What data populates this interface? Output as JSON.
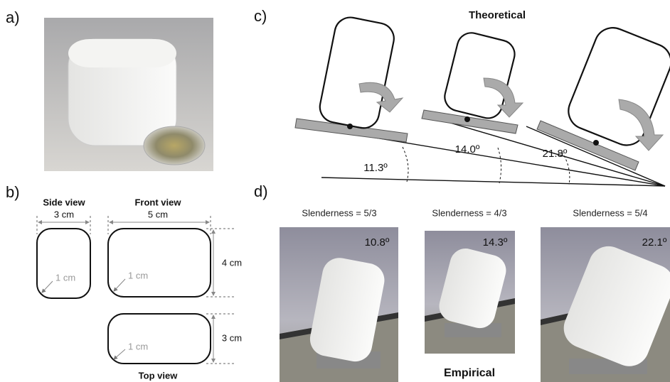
{
  "panels": {
    "a": {
      "label": "a)"
    },
    "b": {
      "label": "b)",
      "side_view": {
        "title": "Side view",
        "width": "3 cm",
        "radius": "1 cm"
      },
      "front_view": {
        "title": "Front view",
        "width": "5 cm",
        "height": "4 cm",
        "radius": "1 cm"
      },
      "top_view": {
        "title": "Top view",
        "height": "3 cm",
        "radius": "1 cm"
      }
    },
    "c": {
      "label": "c)",
      "title": "Theoretical",
      "angles": [
        "11.3º",
        "14.0º",
        "21.8º"
      ]
    },
    "d": {
      "label": "d)",
      "title": "Empirical",
      "photos": [
        {
          "caption": "Slenderness = 5/3",
          "angle": "10.8º"
        },
        {
          "caption": "Slenderness = 4/3",
          "angle": "14.3º"
        },
        {
          "caption": "Slenderness = 5/4",
          "angle": "22.1º"
        }
      ]
    }
  }
}
